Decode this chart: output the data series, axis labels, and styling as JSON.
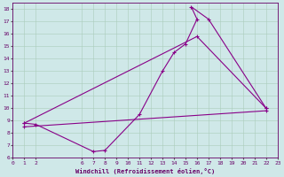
{
  "xlabel": "Windchill (Refroidissement éolien,°C)",
  "background_color": "#cfe8e8",
  "line_color": "#880088",
  "xlim": [
    0,
    23
  ],
  "ylim": [
    6,
    18.5
  ],
  "xticks": [
    0,
    1,
    2,
    6,
    7,
    8,
    9,
    10,
    11,
    12,
    13,
    14,
    15,
    16,
    17,
    18,
    19,
    20,
    21,
    22,
    23
  ],
  "yticks": [
    6,
    7,
    8,
    9,
    10,
    11,
    12,
    13,
    14,
    15,
    16,
    17,
    18
  ],
  "line1_x": [
    1,
    2,
    7,
    8,
    11,
    13,
    14,
    15,
    16,
    15.5,
    17,
    22
  ],
  "line1_y": [
    8.8,
    8.7,
    6.5,
    6.6,
    9.5,
    13.0,
    14.5,
    15.2,
    17.2,
    18.2,
    17.2,
    10.0
  ],
  "line2_x": [
    1,
    16,
    22
  ],
  "line2_y": [
    8.8,
    15.8,
    10.0
  ],
  "line3_x": [
    1,
    22
  ],
  "line3_y": [
    8.5,
    9.8
  ]
}
